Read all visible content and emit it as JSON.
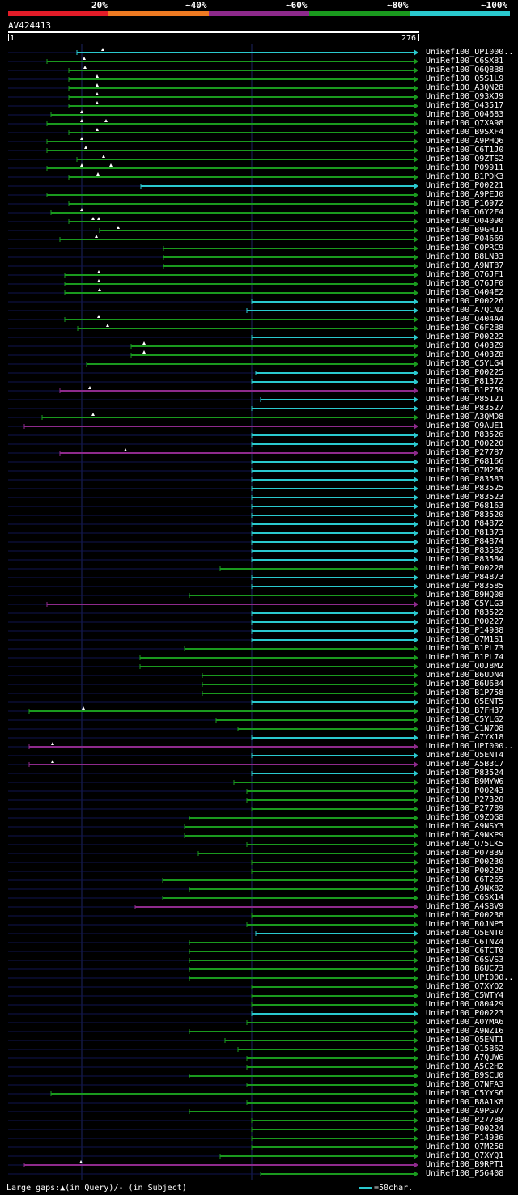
{
  "legend": {
    "labels": [
      "20%",
      "~40%",
      "~60%",
      "~80%",
      "~100%"
    ],
    "colors": [
      "#e21c28",
      "#ee7a22",
      "#8e2a8c",
      "#1a9a1e",
      "#2ac9cf"
    ]
  },
  "query": {
    "title": "AV424413",
    "start_label": "1",
    "end_label": "276"
  },
  "colors": {
    "thin": "#0f1450",
    "green": "#1a9a1e",
    "cyan": "#2ac9cf",
    "purple": "#8e2a8c",
    "gap": "#ffffff"
  },
  "hits": [
    {
      "label": "UniRef100_UPI000..",
      "start": 95,
      "color": "cyan",
      "marks": [
        127
      ]
    },
    {
      "label": "UniRef100_C6SX81",
      "start": 58,
      "color": "green",
      "marks": [
        104
      ]
    },
    {
      "label": "UniRef100_Q6Q8B8",
      "start": 85,
      "color": "green",
      "marks": [
        105
      ]
    },
    {
      "label": "UniRef100_Q5S1L9",
      "start": 85,
      "color": "green",
      "marks": [
        120
      ]
    },
    {
      "label": "UniRef100_A3QN28",
      "start": 85,
      "color": "green",
      "marks": [
        120
      ]
    },
    {
      "label": "UniRef100_Q93XJ9",
      "start": 85,
      "color": "green",
      "marks": [
        120
      ]
    },
    {
      "label": "UniRef100_Q43517",
      "start": 85,
      "color": "green",
      "marks": [
        120
      ]
    },
    {
      "label": "UniRef100_O04683",
      "start": 63,
      "color": "green",
      "marks": [
        101
      ]
    },
    {
      "label": "UniRef100_Q7XA98",
      "start": 58,
      "color": "green",
      "marks": [
        101,
        131
      ]
    },
    {
      "label": "UniRef100_B9SXF4",
      "start": 85,
      "color": "green",
      "marks": [
        120
      ]
    },
    {
      "label": "UniRef100_A9PHQ6",
      "start": 58,
      "color": "green",
      "marks": [
        101
      ]
    },
    {
      "label": "UniRef100_C6T1J0",
      "start": 58,
      "color": "green",
      "marks": [
        106
      ]
    },
    {
      "label": "UniRef100_Q9ZTS2",
      "start": 95,
      "color": "green",
      "marks": [
        128
      ]
    },
    {
      "label": "UniRef100_P09911",
      "start": 58,
      "color": "green",
      "marks": [
        101,
        137
      ]
    },
    {
      "label": "UniRef100_B1PDK3",
      "start": 85,
      "color": "green",
      "marks": [
        121
      ]
    },
    {
      "label": "UniRef100_P00221",
      "start": 174,
      "color": "cyan",
      "marks": []
    },
    {
      "label": "UniRef100_A9PEJ0",
      "start": 58,
      "color": "green",
      "marks": []
    },
    {
      "label": "UniRef100_P16972",
      "start": 85,
      "color": "green",
      "marks": []
    },
    {
      "label": "UniRef100_Q6Y2F4",
      "start": 63,
      "color": "green",
      "marks": [
        101
      ]
    },
    {
      "label": "UniRef100_O04090",
      "start": 85,
      "color": "green",
      "marks": [
        115,
        122
      ]
    },
    {
      "label": "UniRef100_B9GHJ1",
      "start": 123,
      "color": "green",
      "marks": [
        146
      ]
    },
    {
      "label": "UniRef100_P04669",
      "start": 74,
      "color": "green",
      "marks": [
        119
      ]
    },
    {
      "label": "UniRef100_C0PRC9",
      "start": 202,
      "color": "green",
      "marks": []
    },
    {
      "label": "UniRef100_B8LN33",
      "start": 202,
      "color": "green",
      "marks": []
    },
    {
      "label": "UniRef100_A9NTB7",
      "start": 202,
      "color": "green",
      "marks": []
    },
    {
      "label": "UniRef100_Q76JF1",
      "start": 80,
      "color": "green",
      "marks": [
        122
      ]
    },
    {
      "label": "UniRef100_Q76JF0",
      "start": 80,
      "color": "green",
      "marks": [
        122
      ]
    },
    {
      "label": "UniRef100_Q404E2",
      "start": 80,
      "color": "green",
      "marks": [
        123
      ]
    },
    {
      "label": "UniRef100_P00226",
      "start": 311,
      "color": "cyan",
      "marks": []
    },
    {
      "label": "UniRef100_A7QCN2",
      "start": 305,
      "color": "cyan",
      "marks": []
    },
    {
      "label": "UniRef100_Q404A4",
      "start": 80,
      "color": "green",
      "marks": [
        122
      ]
    },
    {
      "label": "UniRef100_C6F2B8",
      "start": 96,
      "color": "green",
      "marks": [
        133
      ]
    },
    {
      "label": "UniRef100_P00222",
      "start": 311,
      "color": "cyan",
      "marks": []
    },
    {
      "label": "UniRef100_Q403Z9",
      "start": 162,
      "color": "green",
      "marks": [
        178
      ]
    },
    {
      "label": "UniRef100_Q403Z8",
      "start": 162,
      "color": "green",
      "marks": [
        178
      ]
    },
    {
      "label": "UniRef100_C5YLG4",
      "start": 107,
      "color": "green",
      "marks": []
    },
    {
      "label": "UniRef100_P00225",
      "start": 316,
      "color": "cyan",
      "marks": []
    },
    {
      "label": "UniRef100_P81372",
      "start": 311,
      "color": "cyan",
      "marks": []
    },
    {
      "label": "UniRef100_B1P759",
      "start": 74,
      "color": "purple",
      "marks": [
        111
      ]
    },
    {
      "label": "UniRef100_P85121",
      "start": 322,
      "color": "cyan",
      "marks": []
    },
    {
      "label": "UniRef100_P83527",
      "start": 311,
      "color": "cyan",
      "marks": []
    },
    {
      "label": "UniRef100_A3QMD8",
      "start": 52,
      "color": "green",
      "marks": [
        115
      ]
    },
    {
      "label": "UniRef100_Q9AUE1",
      "start": 30,
      "color": "purple",
      "marks": []
    },
    {
      "label": "UniRef100_P83526",
      "start": 311,
      "color": "cyan",
      "marks": []
    },
    {
      "label": "UniRef100_P00220",
      "start": 311,
      "color": "cyan",
      "marks": []
    },
    {
      "label": "UniRef100_P27787",
      "start": 74,
      "color": "purple",
      "marks": [
        155
      ]
    },
    {
      "label": "UniRef100_P68166",
      "start": 311,
      "color": "cyan",
      "marks": []
    },
    {
      "label": "UniRef100_Q7M260",
      "start": 311,
      "color": "cyan",
      "marks": []
    },
    {
      "label": "UniRef100_P83583",
      "start": 311,
      "color": "cyan",
      "marks": []
    },
    {
      "label": "UniRef100_P83525",
      "start": 311,
      "color": "cyan",
      "marks": []
    },
    {
      "label": "UniRef100_P83523",
      "start": 311,
      "color": "cyan",
      "marks": []
    },
    {
      "label": "UniRef100_P68163",
      "start": 311,
      "color": "cyan",
      "marks": []
    },
    {
      "label": "UniRef100_P83520",
      "start": 311,
      "color": "cyan",
      "marks": []
    },
    {
      "label": "UniRef100_P84872",
      "start": 311,
      "color": "cyan",
      "marks": []
    },
    {
      "label": "UniRef100_P81373",
      "start": 311,
      "color": "cyan",
      "marks": []
    },
    {
      "label": "UniRef100_P84874",
      "start": 311,
      "color": "cyan",
      "marks": []
    },
    {
      "label": "UniRef100_P83582",
      "start": 311,
      "color": "cyan",
      "marks": []
    },
    {
      "label": "UniRef100_P83584",
      "start": 311,
      "color": "cyan",
      "marks": []
    },
    {
      "label": "UniRef100_P00228",
      "start": 272,
      "color": "green",
      "marks": []
    },
    {
      "label": "UniRef100_P84873",
      "start": 311,
      "color": "cyan",
      "marks": []
    },
    {
      "label": "UniRef100_P83585",
      "start": 311,
      "color": "cyan",
      "marks": []
    },
    {
      "label": "UniRef100_B9HQ08",
      "start": 234,
      "color": "green",
      "marks": []
    },
    {
      "label": "UniRef100_C5YLG3",
      "start": 58,
      "color": "purple",
      "marks": []
    },
    {
      "label": "UniRef100_P83522",
      "start": 311,
      "color": "cyan",
      "marks": []
    },
    {
      "label": "UniRef100_P00227",
      "start": 311,
      "color": "cyan",
      "marks": []
    },
    {
      "label": "UniRef100_P14938",
      "start": 311,
      "color": "cyan",
      "marks": []
    },
    {
      "label": "UniRef100_Q7M1S1",
      "start": 311,
      "color": "cyan",
      "marks": []
    },
    {
      "label": "UniRef100_B1PL73",
      "start": 228,
      "color": "green",
      "marks": []
    },
    {
      "label": "UniRef100_B1PL74",
      "start": 173,
      "color": "green",
      "marks": []
    },
    {
      "label": "UniRef100_Q0J8M2",
      "start": 173,
      "color": "green",
      "marks": []
    },
    {
      "label": "UniRef100_B6UDN4",
      "start": 250,
      "color": "green",
      "marks": []
    },
    {
      "label": "UniRef100_B6U6B4",
      "start": 250,
      "color": "green",
      "marks": []
    },
    {
      "label": "UniRef100_B1P758",
      "start": 250,
      "color": "green",
      "marks": []
    },
    {
      "label": "UniRef100_Q5ENT5",
      "start": 311,
      "color": "cyan",
      "marks": []
    },
    {
      "label": "UniRef100_B7FH37",
      "start": 36,
      "color": "green",
      "marks": [
        103
      ]
    },
    {
      "label": "UniRef100_C5YLG2",
      "start": 267,
      "color": "green",
      "marks": []
    },
    {
      "label": "UniRef100_C1N7Q8",
      "start": 294,
      "color": "green",
      "marks": []
    },
    {
      "label": "UniRef100_A7YX18",
      "start": 311,
      "color": "cyan",
      "marks": []
    },
    {
      "label": "UniRef100_UPI000..",
      "start": 36,
      "color": "purple",
      "marks": [
        65
      ]
    },
    {
      "label": "UniRef100_Q5ENT4",
      "start": 311,
      "color": "cyan",
      "marks": []
    },
    {
      "label": "UniRef100_A5B3C7",
      "start": 36,
      "color": "purple",
      "marks": [
        65
      ]
    },
    {
      "label": "UniRef100_P83524",
      "start": 311,
      "color": "cyan",
      "marks": []
    },
    {
      "label": "UniRef100_B9MYW6",
      "start": 289,
      "color": "green",
      "marks": []
    },
    {
      "label": "UniRef100_P00243",
      "start": 305,
      "color": "green",
      "marks": []
    },
    {
      "label": "UniRef100_P27320",
      "start": 305,
      "color": "green",
      "marks": []
    },
    {
      "label": "UniRef100_P27789",
      "start": 311,
      "color": "green",
      "marks": []
    },
    {
      "label": "UniRef100_Q9ZQG8",
      "start": 234,
      "color": "green",
      "marks": []
    },
    {
      "label": "UniRef100_A9NSY3",
      "start": 228,
      "color": "green",
      "marks": []
    },
    {
      "label": "UniRef100_A9NKP9",
      "start": 228,
      "color": "green",
      "marks": []
    },
    {
      "label": "UniRef100_Q75LK5",
      "start": 305,
      "color": "green",
      "marks": []
    },
    {
      "label": "UniRef100_P07839",
      "start": 245,
      "color": "green",
      "marks": []
    },
    {
      "label": "UniRef100_P00230",
      "start": 311,
      "color": "green",
      "marks": []
    },
    {
      "label": "UniRef100_P00229",
      "start": 311,
      "color": "green",
      "marks": []
    },
    {
      "label": "UniRef100_C6T265",
      "start": 201,
      "color": "green",
      "marks": []
    },
    {
      "label": "UniRef100_A9NX82",
      "start": 234,
      "color": "green",
      "marks": []
    },
    {
      "label": "UniRef100_C6SX14",
      "start": 201,
      "color": "green",
      "marks": []
    },
    {
      "label": "UniRef100_A4S8V9",
      "start": 167,
      "color": "purple",
      "marks": []
    },
    {
      "label": "UniRef100_P00238",
      "start": 311,
      "color": "green",
      "marks": []
    },
    {
      "label": "UniRef100_B0JNP5",
      "start": 305,
      "color": "green",
      "marks": []
    },
    {
      "label": "UniRef100_Q5ENT0",
      "start": 316,
      "color": "cyan",
      "marks": []
    },
    {
      "label": "UniRef100_C6TNZ4",
      "start": 234,
      "color": "green",
      "marks": []
    },
    {
      "label": "UniRef100_C6TCT0",
      "start": 234,
      "color": "green",
      "marks": []
    },
    {
      "label": "UniRef100_C6SVS3",
      "start": 234,
      "color": "green",
      "marks": []
    },
    {
      "label": "UniRef100_B6UC73",
      "start": 234,
      "color": "green",
      "marks": []
    },
    {
      "label": "UniRef100_UPI000..",
      "start": 234,
      "color": "green",
      "marks": []
    },
    {
      "label": "UniRef100_Q7XYQ2",
      "start": 311,
      "color": "green",
      "marks": []
    },
    {
      "label": "UniRef100_C5WTY4",
      "start": 311,
      "color": "green",
      "marks": []
    },
    {
      "label": "UniRef100_O80429",
      "start": 311,
      "color": "green",
      "marks": []
    },
    {
      "label": "UniRef100_P00223",
      "start": 311,
      "color": "cyan",
      "marks": []
    },
    {
      "label": "UniRef100_A0YMA6",
      "start": 305,
      "color": "green",
      "marks": []
    },
    {
      "label": "UniRef100_A9NZI6",
      "start": 234,
      "color": "green",
      "marks": []
    },
    {
      "label": "UniRef100_Q5ENT1",
      "start": 278,
      "color": "green",
      "marks": []
    },
    {
      "label": "UniRef100_Q15B62",
      "start": 294,
      "color": "green",
      "marks": []
    },
    {
      "label": "UniRef100_A7QUW6",
      "start": 305,
      "color": "green",
      "marks": []
    },
    {
      "label": "UniRef100_A5C2H2",
      "start": 305,
      "color": "green",
      "marks": []
    },
    {
      "label": "UniRef100_B9SCU0",
      "start": 234,
      "color": "green",
      "marks": []
    },
    {
      "label": "UniRef100_Q7NFA3",
      "start": 305,
      "color": "green",
      "marks": []
    },
    {
      "label": "UniRef100_C5YYS6",
      "start": 63,
      "color": "green",
      "marks": []
    },
    {
      "label": "UniRef100_B8A1K8",
      "start": 305,
      "color": "green",
      "marks": []
    },
    {
      "label": "UniRef100_A9PGV7",
      "start": 234,
      "color": "green",
      "marks": []
    },
    {
      "label": "UniRef100_P27788",
      "start": 311,
      "color": "green",
      "marks": []
    },
    {
      "label": "UniRef100_P00224",
      "start": 311,
      "color": "green",
      "marks": []
    },
    {
      "label": "UniRef100_P14936",
      "start": 311,
      "color": "green",
      "marks": []
    },
    {
      "label": "UniRef100_Q7M258",
      "start": 311,
      "color": "green",
      "marks": []
    },
    {
      "label": "UniRef100_Q7XYQ1",
      "start": 272,
      "color": "green",
      "marks": []
    },
    {
      "label": "UniRef100_B9RPT1",
      "start": 30,
      "color": "purple",
      "marks": [
        100
      ]
    },
    {
      "label": "UniRef100_P56408",
      "start": 322,
      "color": "green",
      "marks": []
    }
  ],
  "footer": {
    "gaps_text": "Large gaps:▲(in Query)/- (in Subject)",
    "scale_text": "=50char."
  }
}
